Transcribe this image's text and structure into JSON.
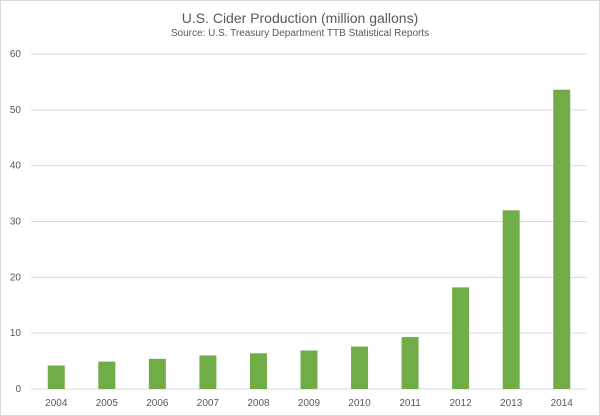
{
  "chart_data": {
    "type": "bar",
    "title": "U.S. Cider Production  (million gallons)",
    "subtitle": "Source: U.S. Treasury Department TTB Statistical Reports",
    "xlabel": "",
    "ylabel": "",
    "categories": [
      "2004",
      "2005",
      "2006",
      "2007",
      "2008",
      "2009",
      "2010",
      "2011",
      "2012",
      "2013",
      "2014"
    ],
    "values": [
      4.2,
      4.9,
      5.4,
      6.0,
      6.4,
      6.9,
      7.6,
      9.3,
      18.2,
      32.0,
      53.6
    ],
    "ylim": [
      0,
      60
    ],
    "yticks": [
      0,
      10,
      20,
      30,
      40,
      50,
      60
    ],
    "grid": true,
    "legend": "none",
    "bar_color": "#70ad47",
    "grid_color": "#d9d9d9"
  }
}
